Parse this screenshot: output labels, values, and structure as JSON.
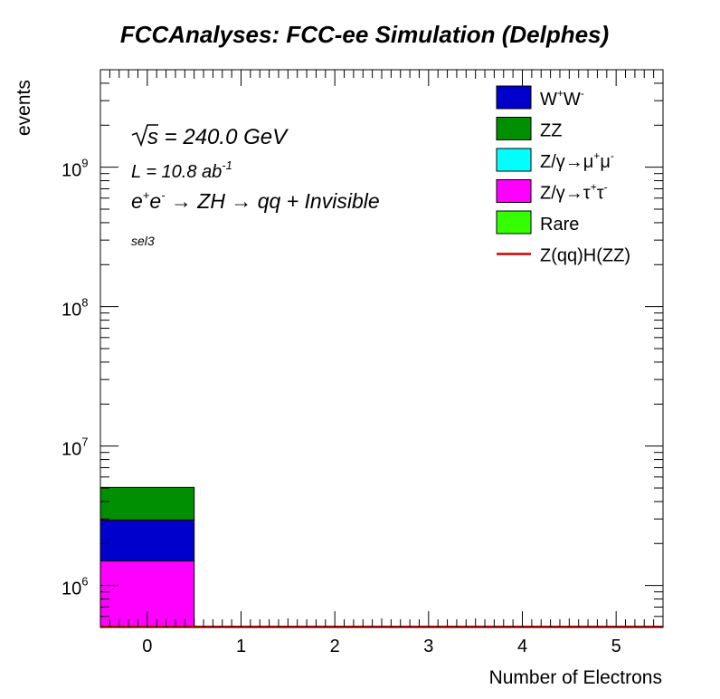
{
  "chart_data": {
    "type": "bar",
    "stacked": true,
    "title": "FCCAnalyses: FCC-ee Simulation (Delphes)",
    "xlabel": "Number of Electrons",
    "ylabel": "events",
    "yscale": "log",
    "xlim": [
      -0.5,
      5.5
    ],
    "ylim": [
      500000,
      5000000000
    ],
    "x_ticks": [
      "0",
      "1",
      "2",
      "3",
      "4",
      "5"
    ],
    "y_ticks": [
      {
        "base": "10",
        "exp": "6",
        "value": 1000000
      },
      {
        "base": "10",
        "exp": "7",
        "value": 10000000
      },
      {
        "base": "10",
        "exp": "8",
        "value": 100000000
      },
      {
        "base": "10",
        "exp": "9",
        "value": 1000000000
      }
    ],
    "bin_edges": [
      -0.5,
      0.5,
      1.5,
      2.5,
      3.5,
      4.5,
      5.5
    ],
    "stack_order_bottom_to_top": [
      "ztautau",
      "ww",
      "zz",
      "zmumu",
      "rare"
    ],
    "series": [
      {
        "key": "ww",
        "color": "#0000cc",
        "values": [
          1450000,
          0,
          0,
          0,
          0,
          0
        ]
      },
      {
        "key": "zz",
        "color": "#008f00",
        "values": [
          2100000,
          0,
          0,
          0,
          0,
          0
        ]
      },
      {
        "key": "zmumu",
        "color": "#00ffff",
        "values": [
          0,
          0,
          0,
          0,
          0,
          0
        ]
      },
      {
        "key": "ztautau",
        "color": "#ff00ff",
        "values": [
          1500000,
          0,
          0,
          0,
          0,
          0
        ]
      },
      {
        "key": "rare",
        "color": "#33ff00",
        "values": [
          0,
          0,
          0,
          0,
          0,
          0
        ]
      }
    ],
    "signal": {
      "key": "signal",
      "color": "#cc0000",
      "values": [
        0,
        0,
        0,
        0,
        0,
        0
      ]
    },
    "legend": {
      "position": "top-right",
      "entries": [
        {
          "key": "ww",
          "kind": "box",
          "text": "W",
          "sup1": "+",
          "text2": "W",
          "sup2": "-"
        },
        {
          "key": "zz",
          "kind": "box",
          "text": "ZZ"
        },
        {
          "key": "zmumu",
          "kind": "box",
          "text": "Z/γ→μ",
          "sup1": "+",
          "text2": "μ",
          "sup2": "-"
        },
        {
          "key": "ztautau",
          "kind": "box",
          "text": "Z/γ→τ",
          "sup1": "+",
          "text2": "τ",
          "sup2": "-"
        },
        {
          "key": "rare",
          "kind": "box",
          "text": "Rare"
        },
        {
          "key": "signal",
          "kind": "line",
          "text": "Z(qq)H(ZZ)"
        }
      ]
    },
    "annotations": {
      "sqrt_symbol": "√",
      "sqrt_var": "s",
      "energy": " = 240.0 GeV",
      "lumi": "L = 10.8 ab",
      "lumi_exp": "-1",
      "process_e1": "e",
      "process_sup1": "+",
      "process_e2": "e",
      "process_sup2": "-",
      "process_rest": " → ZH → qq + Invisible",
      "selection": "sel3"
    }
  }
}
